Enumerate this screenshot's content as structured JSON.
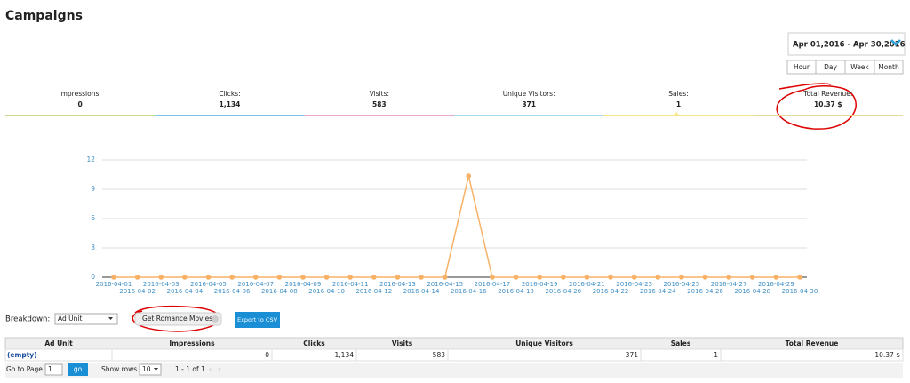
{
  "header": {
    "title": "Campaigns"
  },
  "date_range": "Apr 01,2016 - Apr 30,2016",
  "granularity": [
    "Hour",
    "Day",
    "Week",
    "Month"
  ],
  "metrics": [
    {
      "label": "Impressions:",
      "value": "0"
    },
    {
      "label": "Clicks:",
      "value": "1,134"
    },
    {
      "label": "Visits:",
      "value": "583"
    },
    {
      "label": "Unique Visitors:",
      "value": "371"
    },
    {
      "label": "Sales:",
      "value": "1"
    },
    {
      "label": "Total Revenue:",
      "value": "10.37 $"
    }
  ],
  "chart_data": {
    "type": "line",
    "categories": [
      "2016-04-01",
      "2016-04-02",
      "2016-04-03",
      "2016-04-04",
      "2016-04-05",
      "2016-04-06",
      "2016-04-07",
      "2016-04-08",
      "2016-04-09",
      "2016-04-10",
      "2016-04-11",
      "2016-04-12",
      "2016-04-13",
      "2016-04-14",
      "2016-04-15",
      "2016-04-16",
      "2016-04-17",
      "2016-04-18",
      "2016-04-19",
      "2016-04-20",
      "2016-04-21",
      "2016-04-22",
      "2016-04-23",
      "2016-04-24",
      "2016-04-25",
      "2016-04-26",
      "2016-04-27",
      "2016-04-28",
      "2016-04-29",
      "2016-04-30"
    ],
    "values": [
      0,
      0,
      0,
      0,
      0,
      0,
      0,
      0,
      0,
      0,
      0,
      0,
      0,
      0,
      0,
      10.37,
      0,
      0,
      0,
      0,
      0,
      0,
      0,
      0,
      0,
      0,
      0,
      0,
      0,
      0
    ],
    "color": "#f7b267",
    "ylim": [
      0,
      12
    ],
    "yticks": [
      0,
      3,
      6,
      9,
      12
    ],
    "grid": true
  },
  "breakdown": {
    "label": "Breakdown:",
    "select": "Ad Unit",
    "filter": "Get Romance Movies",
    "export": "Export to CSV"
  },
  "table": {
    "columns": [
      "Ad Unit",
      "Impressions",
      "Clicks",
      "Visits",
      "Unique Visitors",
      "Sales",
      "Total Revenue"
    ],
    "rows": [
      [
        "(empty)",
        "0",
        "1,134",
        "583",
        "371",
        "1",
        "10.37 $"
      ]
    ]
  },
  "pagination": {
    "go_to_label": "Go to Page :",
    "page": "1",
    "go": "go",
    "rows_label": "Show rows :",
    "rows": "10",
    "range": "1 - 1 of 1"
  }
}
